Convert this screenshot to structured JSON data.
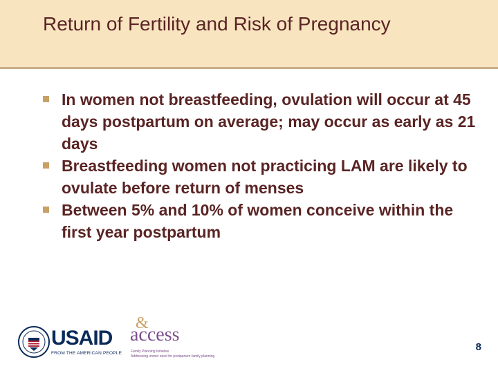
{
  "slide": {
    "title": "Return of Fertility and Risk of Pregnancy",
    "bullets": [
      "In women not breastfeeding, ovulation will occur at 45 days postpartum on average; may occur as early as 21 days",
      "Breastfeeding women not practicing LAM are likely to ovulate before return of menses",
      "Between 5% and 10% of women conceive within the first year postpartum"
    ],
    "page_number": "8"
  },
  "logos": {
    "usaid": {
      "word": "USAID",
      "tagline": "FROM THE AMERICAN PEOPLE"
    },
    "access": {
      "word": "access",
      "line1": "Family Planning Initiative",
      "line2": "Addressing unmet need for postpartum family planning"
    }
  },
  "colors": {
    "title_band": "#f9e4c0",
    "band_rule": "#c9ae88",
    "text": "#5a2424",
    "bullet_marker": "#c8a066",
    "usaid_navy": "#0b2a5b",
    "access_purple": "#7b4d8c"
  }
}
